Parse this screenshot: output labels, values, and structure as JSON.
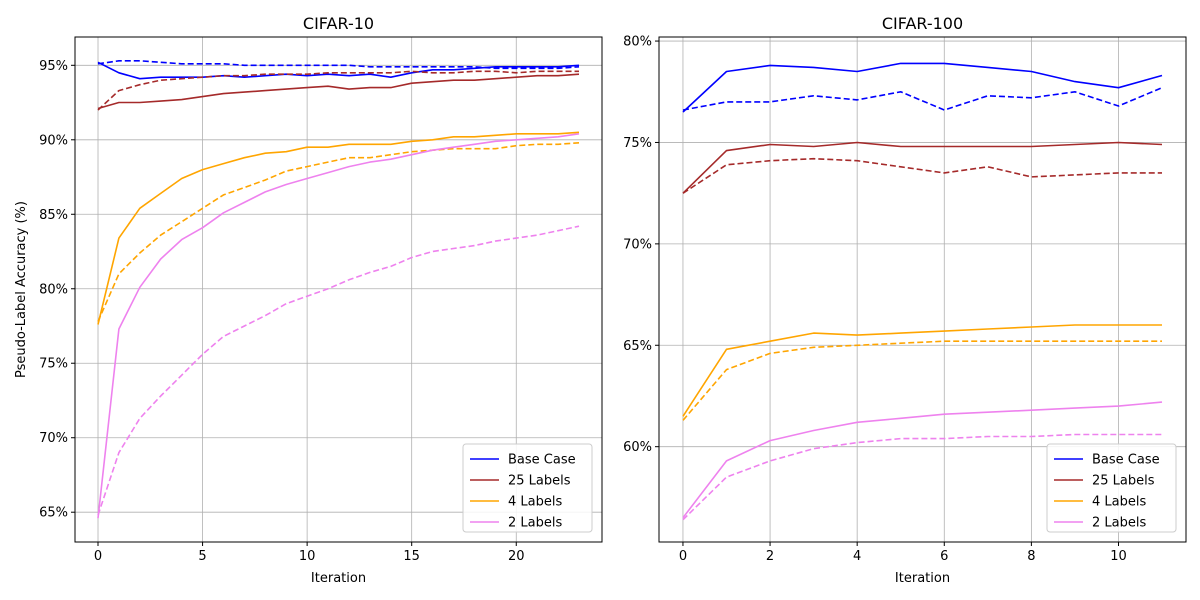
{
  "chart_data": [
    {
      "type": "line",
      "title": "CIFAR-10",
      "xlabel": "Iteration",
      "ylabel": "Pseudo-Label Accuracy (%)",
      "xlim": [
        -1.1,
        24.1
      ],
      "ylim": [
        63,
        96.9
      ],
      "xticks": [
        0,
        5,
        10,
        15,
        20
      ],
      "yticks": [
        65,
        70,
        75,
        80,
        85,
        90,
        95
      ],
      "ytick_labels": [
        "65%",
        "70%",
        "75%",
        "80%",
        "85%",
        "90%",
        "95%"
      ],
      "grid": true,
      "legend_position": "lower-right",
      "legend": [
        {
          "label": "Base Case",
          "color": "#0000ff"
        },
        {
          "label": "25 Labels",
          "color": "#a52a2a"
        },
        {
          "label": "4 Labels",
          "color": "#ffa500"
        },
        {
          "label": "2 Labels",
          "color": "#ee82ee"
        }
      ],
      "x": [
        0,
        1,
        2,
        3,
        4,
        5,
        6,
        7,
        8,
        9,
        10,
        11,
        12,
        13,
        14,
        15,
        16,
        17,
        18,
        19,
        20,
        21,
        22,
        23
      ],
      "series": [
        {
          "name": "Base Case",
          "style": "solid",
          "color": "#0000ff",
          "values": [
            95.2,
            94.5,
            94.1,
            94.2,
            94.2,
            94.2,
            94.3,
            94.2,
            94.3,
            94.4,
            94.3,
            94.4,
            94.3,
            94.4,
            94.2,
            94.5,
            94.7,
            94.7,
            94.8,
            94.9,
            94.9,
            94.9,
            94.9,
            95.0
          ]
        },
        {
          "name": "Base Case",
          "style": "dashed",
          "color": "#0000ff",
          "values": [
            95.1,
            95.3,
            95.3,
            95.2,
            95.1,
            95.1,
            95.1,
            95.0,
            95.0,
            95.0,
            95.0,
            95.0,
            95.0,
            94.9,
            94.9,
            94.9,
            94.9,
            94.9,
            94.9,
            94.8,
            94.8,
            94.8,
            94.8,
            94.9
          ]
        },
        {
          "name": "25 Labels",
          "style": "solid",
          "color": "#a52a2a",
          "values": [
            92.1,
            92.5,
            92.5,
            92.6,
            92.7,
            92.9,
            93.1,
            93.2,
            93.3,
            93.4,
            93.5,
            93.6,
            93.4,
            93.5,
            93.5,
            93.8,
            93.9,
            94.0,
            94.0,
            94.1,
            94.2,
            94.3,
            94.3,
            94.4
          ]
        },
        {
          "name": "25 Labels",
          "style": "dashed",
          "color": "#a52a2a",
          "values": [
            92.0,
            93.3,
            93.7,
            94.0,
            94.1,
            94.2,
            94.3,
            94.3,
            94.4,
            94.4,
            94.4,
            94.5,
            94.5,
            94.5,
            94.5,
            94.6,
            94.5,
            94.5,
            94.6,
            94.6,
            94.5,
            94.6,
            94.6,
            94.6
          ]
        },
        {
          "name": "4 Labels",
          "style": "solid",
          "color": "#ffa500",
          "values": [
            77.6,
            83.4,
            85.4,
            86.4,
            87.4,
            88.0,
            88.4,
            88.8,
            89.1,
            89.2,
            89.5,
            89.5,
            89.7,
            89.7,
            89.7,
            89.9,
            90.0,
            90.2,
            90.2,
            90.3,
            90.4,
            90.4,
            90.4,
            90.5
          ]
        },
        {
          "name": "4 Labels",
          "style": "dashed",
          "color": "#ffa500",
          "values": [
            77.8,
            81.0,
            82.4,
            83.6,
            84.5,
            85.4,
            86.3,
            86.8,
            87.3,
            87.9,
            88.2,
            88.5,
            88.8,
            88.8,
            89.0,
            89.2,
            89.3,
            89.4,
            89.4,
            89.4,
            89.6,
            89.7,
            89.7,
            89.8
          ]
        },
        {
          "name": "2 Labels",
          "style": "solid",
          "color": "#ee82ee",
          "values": [
            64.6,
            77.3,
            80.1,
            82.0,
            83.3,
            84.1,
            85.1,
            85.8,
            86.5,
            87.0,
            87.4,
            87.8,
            88.2,
            88.5,
            88.7,
            89.0,
            89.3,
            89.5,
            89.7,
            89.9,
            90.0,
            90.1,
            90.2,
            90.4
          ]
        },
        {
          "name": "2 Labels",
          "style": "dashed",
          "color": "#ee82ee",
          "values": [
            64.8,
            69.0,
            71.3,
            72.8,
            74.2,
            75.6,
            76.8,
            77.5,
            78.2,
            79.0,
            79.5,
            80.0,
            80.6,
            81.1,
            81.5,
            82.1,
            82.5,
            82.7,
            82.9,
            83.2,
            83.4,
            83.6,
            83.9,
            84.2
          ]
        }
      ]
    },
    {
      "type": "line",
      "title": "CIFAR-100",
      "xlabel": "Iteration",
      "ylabel": "",
      "xlim": [
        -0.55,
        11.55
      ],
      "ylim": [
        55.3,
        80.2
      ],
      "xticks": [
        0,
        2,
        4,
        6,
        8,
        10
      ],
      "yticks": [
        60,
        65,
        70,
        75,
        80
      ],
      "ytick_labels": [
        "60%",
        "65%",
        "70%",
        "75%",
        "80%"
      ],
      "grid": true,
      "legend_position": "lower-right",
      "legend": [
        {
          "label": "Base Case",
          "color": "#0000ff"
        },
        {
          "label": "25 Labels",
          "color": "#a52a2a"
        },
        {
          "label": "4 Labels",
          "color": "#ffa500"
        },
        {
          "label": "2 Labels",
          "color": "#ee82ee"
        }
      ],
      "x": [
        0,
        1,
        2,
        3,
        4,
        5,
        6,
        7,
        8,
        9,
        10,
        11
      ],
      "series": [
        {
          "name": "Base Case",
          "style": "solid",
          "color": "#0000ff",
          "values": [
            76.5,
            78.5,
            78.8,
            78.7,
            78.5,
            78.9,
            78.9,
            78.7,
            78.5,
            78.0,
            77.7,
            78.3
          ]
        },
        {
          "name": "Base Case",
          "style": "dashed",
          "color": "#0000ff",
          "values": [
            76.6,
            77.0,
            77.0,
            77.3,
            77.1,
            77.5,
            76.6,
            77.3,
            77.2,
            77.5,
            76.8,
            77.7
          ]
        },
        {
          "name": "25 Labels",
          "style": "solid",
          "color": "#a52a2a",
          "values": [
            72.5,
            74.6,
            74.9,
            74.8,
            75.0,
            74.8,
            74.8,
            74.8,
            74.8,
            74.9,
            75.0,
            74.9
          ]
        },
        {
          "name": "25 Labels",
          "style": "dashed",
          "color": "#a52a2a",
          "values": [
            72.5,
            73.9,
            74.1,
            74.2,
            74.1,
            73.8,
            73.5,
            73.8,
            73.3,
            73.4,
            73.5,
            73.5
          ]
        },
        {
          "name": "4 Labels",
          "style": "solid",
          "color": "#ffa500",
          "values": [
            61.5,
            64.8,
            65.2,
            65.6,
            65.5,
            65.6,
            65.7,
            65.8,
            65.9,
            66.0,
            66.0,
            66.0
          ]
        },
        {
          "name": "4 Labels",
          "style": "dashed",
          "color": "#ffa500",
          "values": [
            61.3,
            63.8,
            64.6,
            64.9,
            65.0,
            65.1,
            65.2,
            65.2,
            65.2,
            65.2,
            65.2,
            65.2
          ]
        },
        {
          "name": "2 Labels",
          "style": "solid",
          "color": "#ee82ee",
          "values": [
            56.5,
            59.3,
            60.3,
            60.8,
            61.2,
            61.4,
            61.6,
            61.7,
            61.8,
            61.9,
            62.0,
            62.2
          ]
        },
        {
          "name": "2 Labels",
          "style": "dashed",
          "color": "#ee82ee",
          "values": [
            56.4,
            58.5,
            59.3,
            59.9,
            60.2,
            60.4,
            60.4,
            60.5,
            60.5,
            60.6,
            60.6,
            60.6
          ]
        }
      ]
    }
  ]
}
